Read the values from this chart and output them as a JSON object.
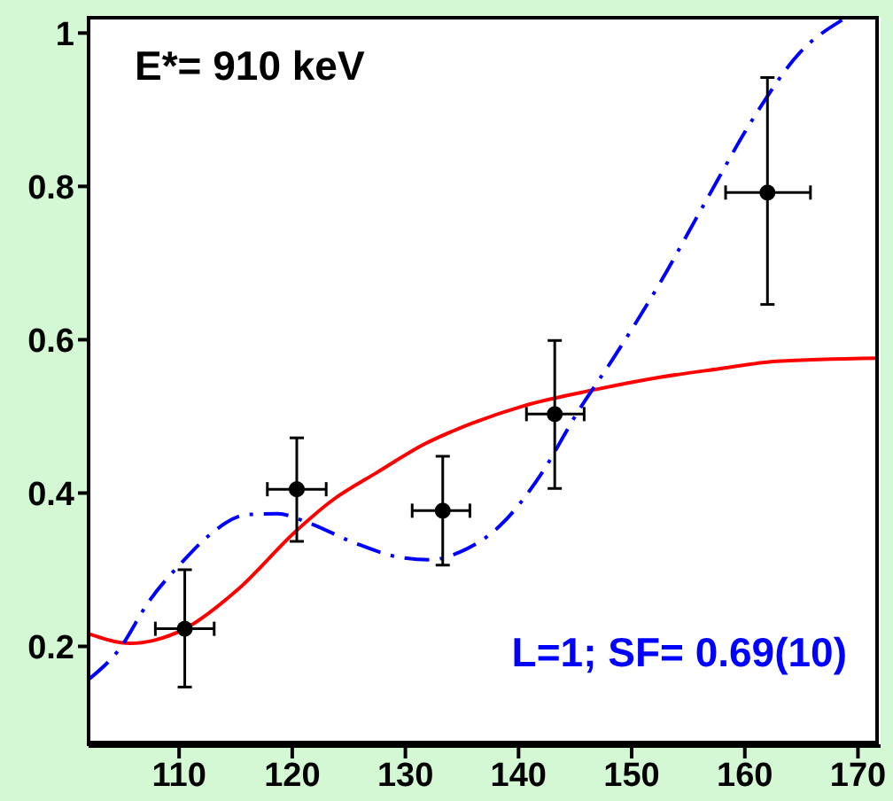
{
  "chart_data": {
    "type": "scatter",
    "annotations": [
      "E*= 910 keV",
      "L=1; SF= 0.69(10)"
    ],
    "xlim": [
      102,
      172
    ],
    "xticks": [
      110,
      120,
      130,
      140,
      150,
      160,
      170
    ],
    "ylim": [
      0.07,
      1.02
    ],
    "yticks": [
      0.2,
      0.4,
      0.6,
      0.8,
      1
    ],
    "series": [
      {
        "type": "line",
        "color": "#ff0000",
        "line_style": "solid",
        "marker": "none",
        "x": [
          102.1,
          105.7,
          107.8,
          110.5,
          115.1,
          120.3,
          123.4,
          127.5,
          131.7,
          135.9,
          140.5,
          146.8,
          152.5,
          157.7,
          162.8,
          171.7
        ],
        "values": [
          0.216,
          0.204,
          0.208,
          0.223,
          0.273,
          0.35,
          0.389,
          0.427,
          0.464,
          0.491,
          0.514,
          0.535,
          0.551,
          0.562,
          0.572,
          0.576
        ]
      },
      {
        "type": "line",
        "color": "#0000ff",
        "line_style": "dashed",
        "marker": "none",
        "x": [
          102.1,
          104.7,
          107.3,
          110.4,
          112.5,
          116.1,
          118.7,
          121.3,
          125.5,
          129.6,
          132.2,
          134.8,
          138.4,
          142.1,
          145.2,
          148.3,
          152.5,
          156.6,
          160.8,
          164.9,
          168.6
        ],
        "values": [
          0.158,
          0.196,
          0.258,
          0.312,
          0.343,
          0.372,
          0.373,
          0.362,
          0.335,
          0.316,
          0.313,
          0.323,
          0.358,
          0.427,
          0.505,
          0.574,
          0.674,
          0.782,
          0.89,
          0.975,
          1.017
        ]
      },
      {
        "color": "#000000",
        "marker": "circle",
        "x": [
          110.5,
          120.4,
          133.3,
          143.2,
          162.0
        ],
        "values": [
          0.223,
          0.405,
          0.377,
          0.503,
          0.792
        ],
        "errors": [
          [
            0.147,
            0.3
          ],
          [
            0.337,
            0.472
          ],
          [
            0.306,
            0.448
          ],
          [
            0.406,
            0.599
          ],
          [
            0.646,
            0.942
          ]
        ],
        "xerrors": [
          [
            107.9,
            113.1
          ],
          [
            117.8,
            123.0
          ],
          [
            130.6,
            135.7
          ],
          [
            140.7,
            145.8
          ],
          [
            158.3,
            165.8
          ]
        ]
      }
    ]
  }
}
